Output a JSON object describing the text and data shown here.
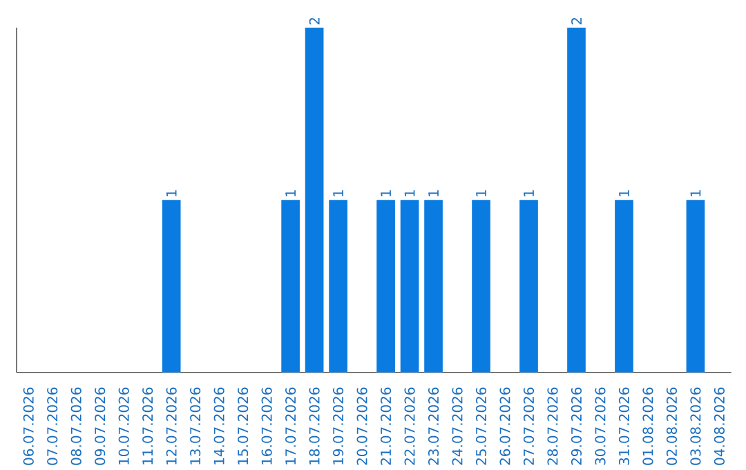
{
  "chart_data": {
    "type": "bar",
    "categories": [
      "06.07.2026",
      "07.07.2026",
      "08.07.2026",
      "09.07.2026",
      "10.07.2026",
      "11.07.2026",
      "12.07.2026",
      "13.07.2026",
      "14.07.2026",
      "15.07.2026",
      "16.07.2026",
      "17.07.2026",
      "18.07.2026",
      "19.07.2026",
      "20.07.2026",
      "21.07.2026",
      "22.07.2026",
      "23.07.2026",
      "24.07.2026",
      "25.07.2026",
      "26.07.2026",
      "27.07.2026",
      "28.07.2026",
      "29.07.2026",
      "30.07.2026",
      "31.07.2026",
      "01.08.2026",
      "02.08.2026",
      "03.08.2026",
      "04.08.2026"
    ],
    "values": [
      0,
      0,
      0,
      0,
      0,
      0,
      1,
      0,
      0,
      0,
      0,
      1,
      2,
      1,
      0,
      1,
      1,
      1,
      0,
      1,
      0,
      1,
      0,
      2,
      0,
      1,
      0,
      0,
      1,
      0
    ],
    "value_labels": [
      null,
      null,
      null,
      null,
      null,
      null,
      "1",
      null,
      null,
      null,
      null,
      "1",
      "2",
      "1",
      null,
      "1",
      "1",
      "1",
      null,
      "1",
      null,
      "1",
      null,
      "2",
      null,
      "1",
      null,
      null,
      "1",
      null
    ],
    "color": "#0a7be0",
    "tick_labels": "x",
    "grid": false
  }
}
